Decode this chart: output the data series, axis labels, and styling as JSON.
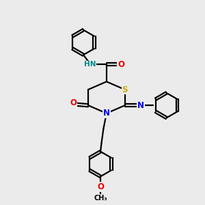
{
  "bg_color": "#ebebeb",
  "atom_colors": {
    "C": "#000000",
    "N": "#0000ee",
    "O": "#ee0000",
    "S": "#ccaa00",
    "H": "#008888"
  },
  "bond_color": "#000000",
  "bond_width": 1.6,
  "ring_r": 0.65,
  "main_ring_r": 1.05
}
